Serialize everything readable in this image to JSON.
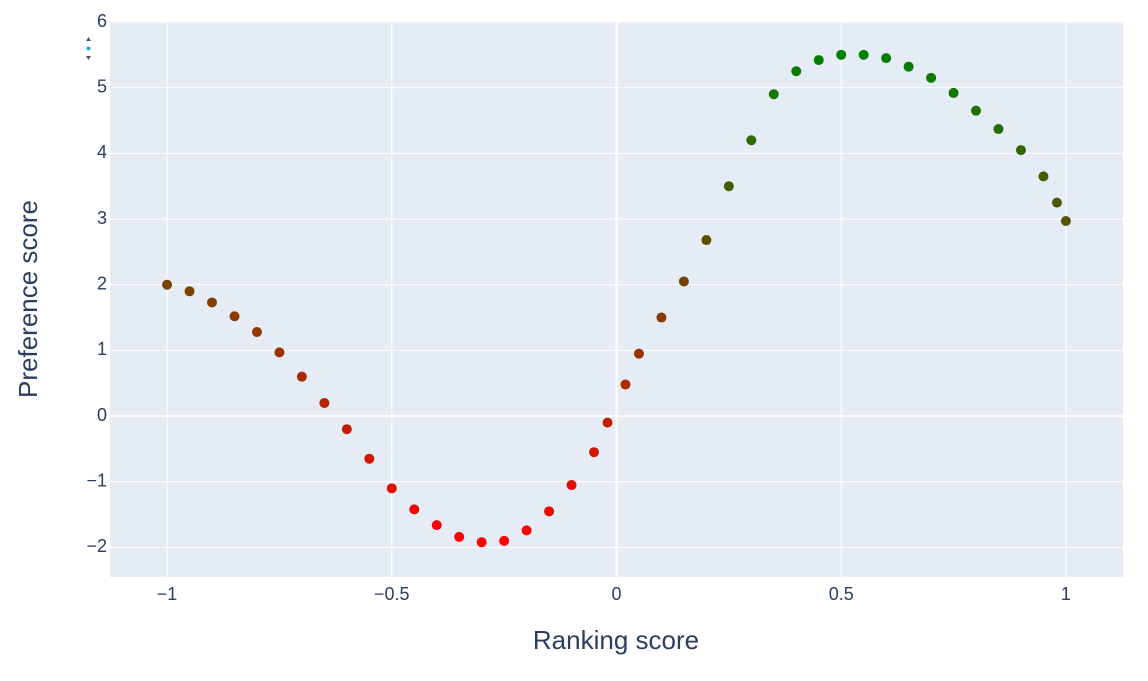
{
  "chart_data": {
    "type": "scatter",
    "x_label": "Ranking score",
    "y_label": "Preference score",
    "x": [
      -1,
      -0.95,
      -0.9,
      -0.85,
      -0.8,
      -0.75,
      -0.7,
      -0.65,
      -0.6,
      -0.55,
      -0.5,
      -0.45,
      -0.4,
      -0.35,
      -0.3,
      -0.25,
      -0.2,
      -0.15,
      -0.1,
      -0.05,
      -0.02,
      0.02,
      0.05,
      0.1,
      0.15,
      0.2,
      0.25,
      0.3,
      0.35,
      0.4,
      0.45,
      0.5,
      0.55,
      0.6,
      0.65,
      0.7,
      0.75,
      0.8,
      0.85,
      0.9,
      0.95,
      0.98,
      1
    ],
    "values": [
      2.0,
      1.9,
      1.73,
      1.52,
      1.28,
      0.97,
      0.6,
      0.2,
      -0.2,
      -0.65,
      -1.1,
      -1.42,
      -1.66,
      -1.84,
      -1.92,
      -1.9,
      -1.74,
      -1.45,
      -1.05,
      -0.55,
      -0.1,
      0.48,
      0.95,
      1.5,
      2.05,
      2.68,
      3.5,
      4.2,
      4.9,
      5.25,
      5.42,
      5.5,
      5.5,
      5.45,
      5.32,
      5.15,
      4.92,
      4.65,
      4.37,
      4.05,
      3.65,
      3.25,
      2.97
    ],
    "colorscale": [
      "#ff0000",
      "#008000"
    ],
    "xlim": [
      -1.127,
      1.127
    ],
    "ylim": [
      -2.45,
      6
    ],
    "xticks": [
      {
        "value": -1,
        "label": "−1"
      },
      {
        "value": -0.5,
        "label": "−0.5"
      },
      0,
      0.5,
      1
    ],
    "yticks": [
      {
        "value": -2,
        "label": "−2"
      },
      {
        "value": -1,
        "label": "−1"
      },
      0,
      1,
      2,
      3,
      4,
      5,
      6
    ],
    "grid": true
  }
}
